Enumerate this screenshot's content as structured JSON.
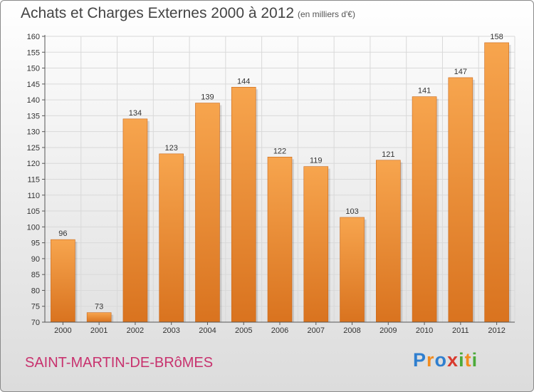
{
  "header": {
    "title": "Achats et Charges Externes 2000 à 2012",
    "subtitle": "(en milliers d'€)"
  },
  "footer": {
    "commune": "SAINT-MARTIN-DE-BRôMES",
    "brand_letters": [
      {
        "ch": "P",
        "color": "#2f7fcf"
      },
      {
        "ch": "r",
        "color": "#f28c1e"
      },
      {
        "ch": "o",
        "color": "#2f7fcf"
      },
      {
        "ch": "x",
        "color": "#d83a2e"
      },
      {
        "ch": "i",
        "color": "#4caa3a"
      },
      {
        "ch": "t",
        "color": "#f28c1e"
      },
      {
        "ch": "i",
        "color": "#4caa3a"
      }
    ]
  },
  "colors": {
    "bar_light": "#f7a54e",
    "bar_dark": "#d9731f",
    "grid": "#d9d9d9",
    "axis": "#555555"
  },
  "chart_data": {
    "type": "bar",
    "categories": [
      "2000",
      "2001",
      "2002",
      "2003",
      "2004",
      "2005",
      "2006",
      "2007",
      "2008",
      "2009",
      "2010",
      "2011",
      "2012"
    ],
    "values": [
      96,
      73,
      134,
      123,
      139,
      144,
      122,
      119,
      103,
      121,
      141,
      147,
      158
    ],
    "title": "Achats et Charges Externes 2000 à 2012",
    "subtitle": "(en milliers d'€)",
    "xlabel": "",
    "ylabel": "",
    "ylim": [
      70,
      160
    ],
    "yticks": [
      70,
      75,
      80,
      85,
      90,
      95,
      100,
      105,
      110,
      115,
      120,
      125,
      130,
      135,
      140,
      145,
      150,
      155,
      160
    ],
    "grid": true,
    "data_labels": true
  }
}
